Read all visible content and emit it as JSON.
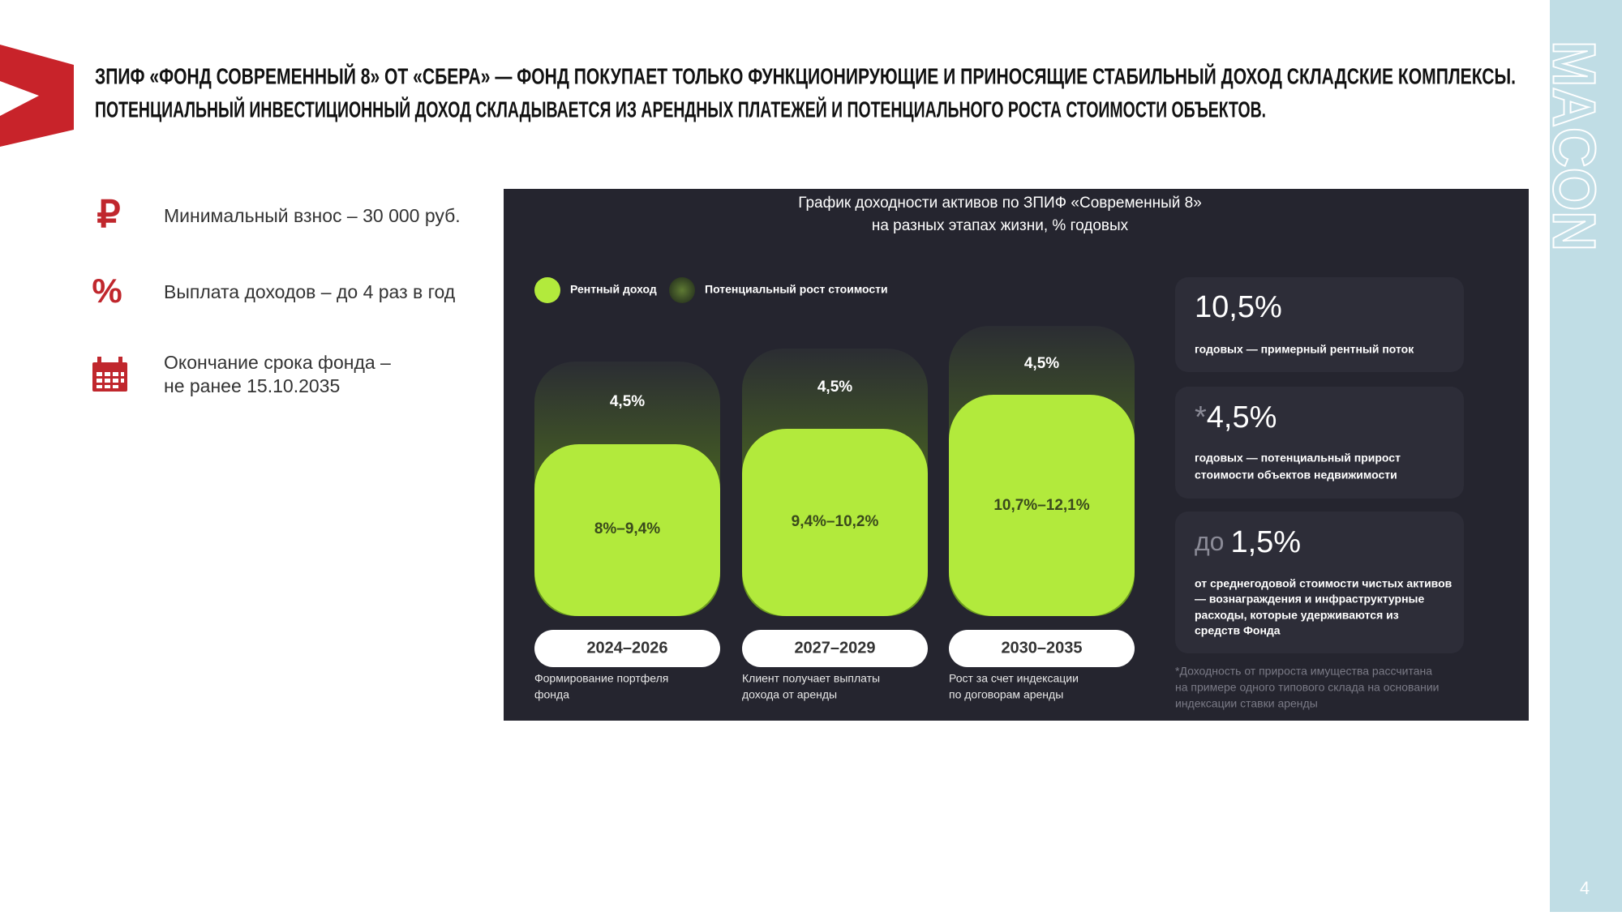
{
  "header": {
    "title": [
      "ЗПИФ «ФОНД СОВРЕМЕННЫЙ 8» ОТ «СБЕРА» — ФОНД ПОКУПАЕТ ТОЛЬКО ФУНКЦИОНИРУЮЩИЕ И ПРИНОСЯЩИЕ СТАБИЛЬНЫЙ ДОХОД СКЛАДСКИЕ КОМПЛЕКСЫ.",
      "ПОТЕНЦИАЛЬНЫЙ ИНВЕСТИЦИОННЫЙ ДОХОД СКЛАДЫВАЕТСЯ ИЗ АРЕНДНЫХ ПЛАТЕЖЕЙ И ПОТЕНЦИАЛЬНОГО РОСТА СТОИМОСТИ ОБЪЕКТОВ."
    ]
  },
  "features": [
    {
      "icon": "₽",
      "text": [
        "Минимальный взнос – 30 000 руб."
      ]
    },
    {
      "icon": "%",
      "text": [
        "Выплата доходов – до 4 раз в год"
      ]
    },
    {
      "text": [
        "Окончание срока фонда –",
        "не ранее 15.10.2035"
      ]
    }
  ],
  "panel": {
    "title": [
      "График доходности активов по ЗПИФ «Современный 8»",
      "на разных этапах жизни, % годовых"
    ],
    "legend": [
      "Рентный доход",
      "Потенциальный рост стоимости"
    ],
    "columns": [
      {
        "growth": "4,5%",
        "rent": "8%–9,4%",
        "years": "2024–2026",
        "description": [
          "Формирование портфеля",
          "фонда"
        ]
      },
      {
        "growth": "4,5%",
        "rent": "9,4%–10,2%",
        "years": "2027–2029",
        "description": [
          "Клиент получает выплаты",
          "дохода от аренды"
        ]
      },
      {
        "growth": "4,5%",
        "rent": "10,7%–12,1%",
        "years": "2030–2035",
        "description": [
          "Рост за счет индексации",
          "по договорам аренды"
        ]
      }
    ],
    "cards": [
      {
        "prefix": "",
        "value": "10,5%",
        "text": [
          "годовых — примерный рентный поток"
        ]
      },
      {
        "prefix": "*",
        "value": "4,5%",
        "text": [
          "годовых — потенциальный прирост",
          "стоимости объектов недвижимости"
        ]
      },
      {
        "prefix": "до",
        "value": "1,5%",
        "text": [
          "от среднегодовой стоимости чистых активов",
          "— вознаграждения и инфраструктурные",
          "расходы, которые удерживаются из",
          "средств Фонда"
        ]
      }
    ],
    "footnote": [
      "*Доходность от прироста имущества рассчитана",
      "на примере одного типового склада на основании",
      "индексации ставки аренды"
    ]
  },
  "sidebar": {
    "brand": "MACON",
    "page": "4"
  }
}
